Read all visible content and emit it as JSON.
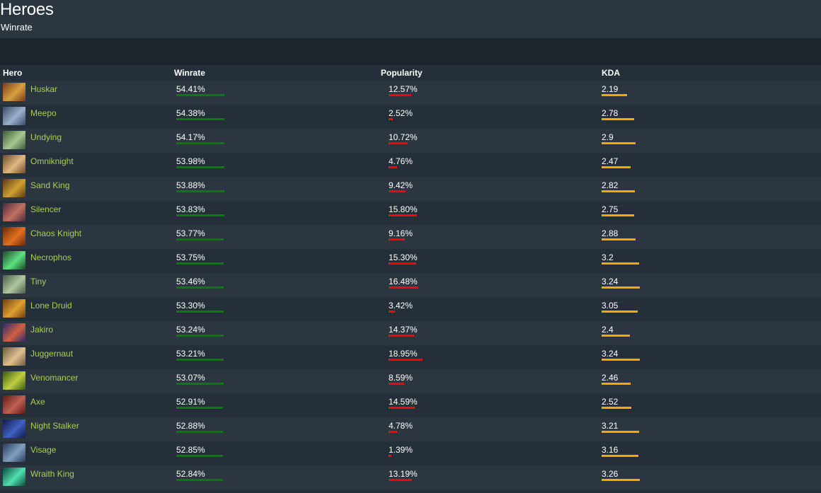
{
  "page": {
    "title": "Heroes",
    "subtitle": "Winrate"
  },
  "columns": {
    "hero": "Hero",
    "winrate": "Winrate",
    "popularity": "Popularity",
    "kda": "KDA"
  },
  "colors": {
    "hero_name": "#a9cf54",
    "winrate_bar": "#008000",
    "popularity_bar": "#ff0000",
    "kda_bar": "#ffa500"
  },
  "heroes": [
    {
      "name": "Huskar",
      "winrate": "54.41%",
      "popularity": "12.57%",
      "kda": "2.19",
      "portrait_colors": [
        "#7a3a1a",
        "#d8a040"
      ]
    },
    {
      "name": "Meepo",
      "winrate": "54.38%",
      "popularity": "2.52%",
      "kda": "2.78",
      "portrait_colors": [
        "#3a4a6a",
        "#9ab0c8"
      ]
    },
    {
      "name": "Undying",
      "winrate": "54.17%",
      "popularity": "10.72%",
      "kda": "2.9",
      "portrait_colors": [
        "#3a5a3a",
        "#a8c890"
      ]
    },
    {
      "name": "Omniknight",
      "winrate": "53.98%",
      "popularity": "4.76%",
      "kda": "2.47",
      "portrait_colors": [
        "#6a4a2a",
        "#e0b880"
      ]
    },
    {
      "name": "Sand King",
      "winrate": "53.88%",
      "popularity": "9.42%",
      "kda": "2.82",
      "portrait_colors": [
        "#5a3a10",
        "#d0a030"
      ]
    },
    {
      "name": "Silencer",
      "winrate": "53.83%",
      "popularity": "15.80%",
      "kda": "2.75",
      "portrait_colors": [
        "#4a2a3a",
        "#c07060"
      ]
    },
    {
      "name": "Chaos Knight",
      "winrate": "53.77%",
      "popularity": "9.16%",
      "kda": "2.88",
      "portrait_colors": [
        "#6a2a0a",
        "#e07020"
      ]
    },
    {
      "name": "Necrophos",
      "winrate": "53.75%",
      "popularity": "15.30%",
      "kda": "3.2",
      "portrait_colors": [
        "#1a4a2a",
        "#60e080"
      ]
    },
    {
      "name": "Tiny",
      "winrate": "53.46%",
      "popularity": "16.48%",
      "kda": "3.24",
      "portrait_colors": [
        "#4a5a4a",
        "#b0c8a0"
      ]
    },
    {
      "name": "Lone Druid",
      "winrate": "53.30%",
      "popularity": "3.42%",
      "kda": "3.05",
      "portrait_colors": [
        "#6a4010",
        "#e0a030"
      ]
    },
    {
      "name": "Jakiro",
      "winrate": "53.24%",
      "popularity": "14.37%",
      "kda": "2.4",
      "portrait_colors": [
        "#2a2a6a",
        "#d06040"
      ]
    },
    {
      "name": "Juggernaut",
      "winrate": "53.21%",
      "popularity": "18.95%",
      "kda": "3.24",
      "portrait_colors": [
        "#6a5a3a",
        "#e0c090"
      ]
    },
    {
      "name": "Venomancer",
      "winrate": "53.07%",
      "popularity": "8.59%",
      "kda": "2.46",
      "portrait_colors": [
        "#3a5a10",
        "#c0d040"
      ]
    },
    {
      "name": "Axe",
      "winrate": "52.91%",
      "popularity": "14.59%",
      "kda": "2.52",
      "portrait_colors": [
        "#5a1a1a",
        "#c06050"
      ]
    },
    {
      "name": "Night Stalker",
      "winrate": "52.88%",
      "popularity": "4.78%",
      "kda": "3.21",
      "portrait_colors": [
        "#101a4a",
        "#4060c0"
      ]
    },
    {
      "name": "Visage",
      "winrate": "52.85%",
      "popularity": "1.39%",
      "kda": "3.16",
      "portrait_colors": [
        "#2a3a5a",
        "#80a0c0"
      ]
    },
    {
      "name": "Wraith King",
      "winrate": "52.84%",
      "popularity": "13.19%",
      "kda": "3.26",
      "portrait_colors": [
        "#0a4a3a",
        "#50e0b0"
      ]
    }
  ]
}
